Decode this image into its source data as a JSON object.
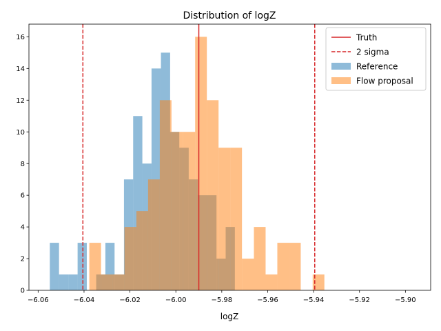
{
  "chart_data": {
    "type": "bar",
    "title": "Distribution of logZ",
    "xlabel": "logZ",
    "ylabel": "",
    "xlim": [
      -6.064,
      -5.889
    ],
    "ylim": [
      0,
      16.8
    ],
    "xticks": [
      -6.06,
      -6.04,
      -6.02,
      -6.0,
      -5.98,
      -5.96,
      -5.94,
      -5.92,
      -5.9
    ],
    "xtick_labels": [
      "−6.06",
      "−6.04",
      "−6.02",
      "−6.00",
      "−5.98",
      "−5.96",
      "−5.94",
      "−5.92",
      "−5.90"
    ],
    "yticks": [
      0,
      2,
      4,
      6,
      8,
      10,
      12,
      14,
      16
    ],
    "ytick_labels": [
      "0",
      "2",
      "4",
      "6",
      "8",
      "10",
      "12",
      "14",
      "16"
    ],
    "grid": false,
    "legend_placement": "top-right",
    "series": [
      {
        "name": "Reference",
        "kind": "histogram",
        "color": "#1f77b4",
        "alpha": 0.5,
        "bins": [
          {
            "x0": -6.0549,
            "x1": -6.0509,
            "count": 3
          },
          {
            "x0": -6.0509,
            "x1": -6.0468,
            "count": 1
          },
          {
            "x0": -6.0468,
            "x1": -6.0428,
            "count": 1
          },
          {
            "x0": -6.0428,
            "x1": -6.0388,
            "count": 3
          },
          {
            "x0": -6.0388,
            "x1": -6.0347,
            "count": 0
          },
          {
            "x0": -6.0347,
            "x1": -6.0307,
            "count": 1
          },
          {
            "x0": -6.0307,
            "x1": -6.0267,
            "count": 3
          },
          {
            "x0": -6.0267,
            "x1": -6.0226,
            "count": 1
          },
          {
            "x0": -6.0226,
            "x1": -6.0186,
            "count": 7
          },
          {
            "x0": -6.0186,
            "x1": -6.0146,
            "count": 11
          },
          {
            "x0": -6.0146,
            "x1": -6.0106,
            "count": 8
          },
          {
            "x0": -6.0106,
            "x1": -6.0065,
            "count": 14
          },
          {
            "x0": -6.0065,
            "x1": -6.0025,
            "count": 15
          },
          {
            "x0": -6.0025,
            "x1": -5.9985,
            "count": 10
          },
          {
            "x0": -5.9985,
            "x1": -5.9944,
            "count": 9
          },
          {
            "x0": -5.9944,
            "x1": -5.9904,
            "count": 7
          },
          {
            "x0": -5.9904,
            "x1": -5.9864,
            "count": 6
          },
          {
            "x0": -5.9864,
            "x1": -5.9823,
            "count": 6
          },
          {
            "x0": -5.9823,
            "x1": -5.9783,
            "count": 2
          },
          {
            "x0": -5.9783,
            "x1": -5.9743,
            "count": 4
          }
        ]
      },
      {
        "name": "Flow proposal",
        "kind": "histogram",
        "color": "#ff7f0e",
        "alpha": 0.5,
        "bins": [
          {
            "x0": -6.0377,
            "x1": -6.0326,
            "count": 3
          },
          {
            "x0": -6.0326,
            "x1": -6.0275,
            "count": 1
          },
          {
            "x0": -6.0275,
            "x1": -6.0224,
            "count": 1
          },
          {
            "x0": -6.0224,
            "x1": -6.0172,
            "count": 4
          },
          {
            "x0": -6.0172,
            "x1": -6.0121,
            "count": 5
          },
          {
            "x0": -6.0121,
            "x1": -6.007,
            "count": 7
          },
          {
            "x0": -6.007,
            "x1": -6.0019,
            "count": 12
          },
          {
            "x0": -6.0019,
            "x1": -5.9968,
            "count": 10
          },
          {
            "x0": -5.9968,
            "x1": -5.9916,
            "count": 10
          },
          {
            "x0": -5.9916,
            "x1": -5.9865,
            "count": 16
          },
          {
            "x0": -5.9865,
            "x1": -5.9814,
            "count": 12
          },
          {
            "x0": -5.9814,
            "x1": -5.9763,
            "count": 9
          },
          {
            "x0": -5.9763,
            "x1": -5.9712,
            "count": 9
          },
          {
            "x0": -5.9712,
            "x1": -5.966,
            "count": 2
          },
          {
            "x0": -5.966,
            "x1": -5.9609,
            "count": 4
          },
          {
            "x0": -5.9609,
            "x1": -5.9558,
            "count": 1
          },
          {
            "x0": -5.9558,
            "x1": -5.9507,
            "count": 3
          },
          {
            "x0": -5.9507,
            "x1": -5.9456,
            "count": 3
          },
          {
            "x0": -5.9456,
            "x1": -5.9404,
            "count": 0
          },
          {
            "x0": -5.9404,
            "x1": -5.9353,
            "count": 1
          }
        ]
      }
    ],
    "reference_lines": [
      {
        "name": "Truth",
        "x": -5.99,
        "style": "solid",
        "color": "#d62728"
      },
      {
        "name": "2 sigma",
        "x": -6.0405,
        "style": "dashed",
        "color": "#d62728"
      },
      {
        "name": "2 sigma",
        "x": -5.9395,
        "style": "dashed",
        "color": "#d62728"
      }
    ],
    "legend": [
      {
        "label": "Truth",
        "kind": "line-solid",
        "color": "#d62728"
      },
      {
        "label": "2 sigma",
        "kind": "line-dashed",
        "color": "#d62728"
      },
      {
        "label": "Reference",
        "kind": "patch",
        "color": "#1f77b4"
      },
      {
        "label": "Flow proposal",
        "kind": "patch",
        "color": "#ff7f0e"
      }
    ]
  }
}
